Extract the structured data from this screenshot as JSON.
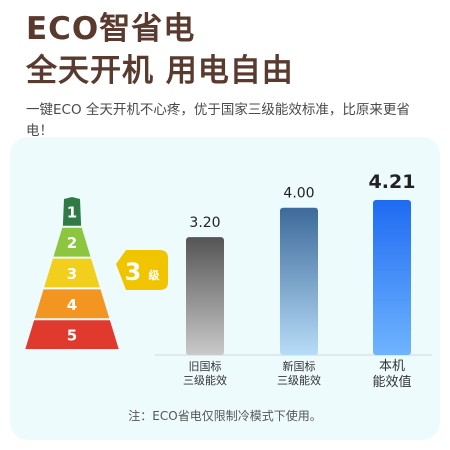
{
  "header": {
    "title_line1": "ECO智省电",
    "title_line2": "全天开机 用电自由",
    "subtitle": "一键ECO 全天开机不心疼，优于国家三级能效标准，比原来更省电！"
  },
  "energy_scale": {
    "levels": [
      "1",
      "2",
      "3",
      "4",
      "5"
    ],
    "level_colors": [
      "#2f7a45",
      "#8cc63f",
      "#f1cf1c",
      "#f39621",
      "#e03a2e"
    ],
    "current_level": "3",
    "current_suffix": "级",
    "badge_color": "#f1c400"
  },
  "chart_data": {
    "type": "bar",
    "categories": [
      [
        "旧国标",
        "三级能效"
      ],
      [
        "新国标",
        "三级能效"
      ],
      [
        "本机",
        "能效值"
      ]
    ],
    "values": [
      3.2,
      4.0,
      4.21
    ],
    "value_labels": [
      "3.20",
      "4.00",
      "4.21"
    ],
    "colors": {
      "bar1": [
        "#555555",
        "#c9c9c9"
      ],
      "bar2": [
        "#3d6a9a",
        "#b7dcf7"
      ],
      "bar3": [
        "#1e6bf2",
        "#6fb4ff"
      ]
    },
    "ylim": [
      0,
      4.21
    ]
  },
  "footnote": "注：ECO省电仅限制冷模式下使用。"
}
